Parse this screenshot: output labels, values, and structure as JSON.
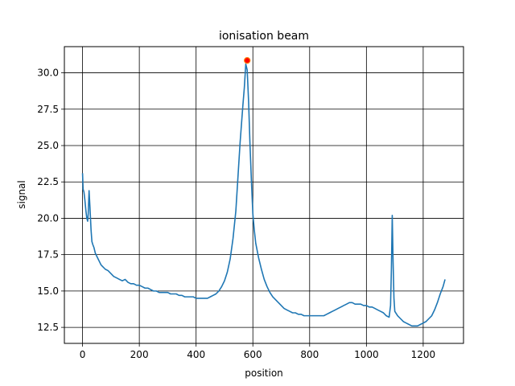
{
  "chart_data": {
    "type": "line",
    "title": "ionisation beam",
    "xlabel": "position",
    "ylabel": "signal",
    "xlim": [
      -64,
      1342
    ],
    "ylim": [
      11.4,
      31.8
    ],
    "xticks": [
      0,
      200,
      400,
      600,
      800,
      1000,
      1200
    ],
    "yticks": [
      12.5,
      15.0,
      17.5,
      20.0,
      22.5,
      25.0,
      27.5,
      30.0
    ],
    "xtick_labels": [
      "0",
      "200",
      "400",
      "600",
      "800",
      "1000",
      "1200"
    ],
    "ytick_labels": [
      "12.5",
      "15.0",
      "17.5",
      "20.0",
      "22.5",
      "25.0",
      "27.5",
      "30.0"
    ],
    "grid": true,
    "line_color": "#1f77b4",
    "series": [
      {
        "values": [
          [
            0,
            23.1
          ],
          [
            2,
            22.0
          ],
          [
            5,
            21.8
          ],
          [
            8,
            21.3
          ],
          [
            12,
            20.5
          ],
          [
            15,
            20.0
          ],
          [
            18,
            19.8
          ],
          [
            20,
            20.3
          ],
          [
            23,
            21.9
          ],
          [
            26,
            20.8
          ],
          [
            30,
            19.2
          ],
          [
            33,
            18.4
          ],
          [
            36,
            18.2
          ],
          [
            40,
            18.0
          ],
          [
            45,
            17.6
          ],
          [
            50,
            17.4
          ],
          [
            55,
            17.2
          ],
          [
            60,
            17.0
          ],
          [
            65,
            16.8
          ],
          [
            70,
            16.7
          ],
          [
            80,
            16.5
          ],
          [
            90,
            16.4
          ],
          [
            100,
            16.2
          ],
          [
            110,
            16.0
          ],
          [
            120,
            15.9
          ],
          [
            130,
            15.8
          ],
          [
            140,
            15.7
          ],
          [
            150,
            15.8
          ],
          [
            160,
            15.6
          ],
          [
            170,
            15.5
          ],
          [
            180,
            15.5
          ],
          [
            190,
            15.4
          ],
          [
            200,
            15.4
          ],
          [
            210,
            15.3
          ],
          [
            220,
            15.2
          ],
          [
            230,
            15.2
          ],
          [
            240,
            15.1
          ],
          [
            250,
            15.0
          ],
          [
            260,
            15.0
          ],
          [
            270,
            14.9
          ],
          [
            280,
            14.9
          ],
          [
            290,
            14.9
          ],
          [
            300,
            14.9
          ],
          [
            310,
            14.8
          ],
          [
            320,
            14.8
          ],
          [
            330,
            14.8
          ],
          [
            340,
            14.7
          ],
          [
            350,
            14.7
          ],
          [
            360,
            14.6
          ],
          [
            370,
            14.6
          ],
          [
            380,
            14.6
          ],
          [
            390,
            14.6
          ],
          [
            400,
            14.5
          ],
          [
            410,
            14.5
          ],
          [
            420,
            14.5
          ],
          [
            430,
            14.5
          ],
          [
            440,
            14.5
          ],
          [
            450,
            14.6
          ],
          [
            460,
            14.7
          ],
          [
            470,
            14.8
          ],
          [
            480,
            15.0
          ],
          [
            490,
            15.3
          ],
          [
            500,
            15.7
          ],
          [
            510,
            16.3
          ],
          [
            520,
            17.2
          ],
          [
            530,
            18.6
          ],
          [
            540,
            20.5
          ],
          [
            548,
            23.0
          ],
          [
            555,
            25.2
          ],
          [
            560,
            26.5
          ],
          [
            565,
            27.8
          ],
          [
            570,
            29.0
          ],
          [
            575,
            30.6
          ],
          [
            580,
            30.2
          ],
          [
            585,
            28.0
          ],
          [
            590,
            25.0
          ],
          [
            595,
            22.5
          ],
          [
            600,
            20.3
          ],
          [
            605,
            19.2
          ],
          [
            610,
            18.3
          ],
          [
            620,
            17.3
          ],
          [
            630,
            16.5
          ],
          [
            640,
            15.8
          ],
          [
            650,
            15.3
          ],
          [
            660,
            14.9
          ],
          [
            670,
            14.6
          ],
          [
            680,
            14.4
          ],
          [
            690,
            14.2
          ],
          [
            700,
            14.0
          ],
          [
            710,
            13.8
          ],
          [
            720,
            13.7
          ],
          [
            730,
            13.6
          ],
          [
            740,
            13.5
          ],
          [
            750,
            13.5
          ],
          [
            760,
            13.4
          ],
          [
            770,
            13.4
          ],
          [
            780,
            13.3
          ],
          [
            790,
            13.3
          ],
          [
            800,
            13.3
          ],
          [
            810,
            13.3
          ],
          [
            820,
            13.3
          ],
          [
            830,
            13.3
          ],
          [
            840,
            13.3
          ],
          [
            850,
            13.3
          ],
          [
            860,
            13.4
          ],
          [
            870,
            13.5
          ],
          [
            880,
            13.6
          ],
          [
            890,
            13.7
          ],
          [
            900,
            13.8
          ],
          [
            910,
            13.9
          ],
          [
            920,
            14.0
          ],
          [
            930,
            14.1
          ],
          [
            940,
            14.2
          ],
          [
            950,
            14.2
          ],
          [
            960,
            14.1
          ],
          [
            970,
            14.1
          ],
          [
            980,
            14.1
          ],
          [
            990,
            14.0
          ],
          [
            1000,
            14.0
          ],
          [
            1010,
            13.9
          ],
          [
            1020,
            13.9
          ],
          [
            1030,
            13.8
          ],
          [
            1040,
            13.7
          ],
          [
            1050,
            13.6
          ],
          [
            1060,
            13.5
          ],
          [
            1070,
            13.3
          ],
          [
            1080,
            13.2
          ],
          [
            1085,
            14.0
          ],
          [
            1088,
            16.5
          ],
          [
            1091,
            20.2
          ],
          [
            1094,
            17.0
          ],
          [
            1097,
            14.5
          ],
          [
            1100,
            13.6
          ],
          [
            1110,
            13.3
          ],
          [
            1120,
            13.1
          ],
          [
            1130,
            12.9
          ],
          [
            1140,
            12.8
          ],
          [
            1150,
            12.7
          ],
          [
            1160,
            12.6
          ],
          [
            1170,
            12.6
          ],
          [
            1180,
            12.6
          ],
          [
            1190,
            12.7
          ],
          [
            1200,
            12.8
          ],
          [
            1210,
            12.9
          ],
          [
            1220,
            13.1
          ],
          [
            1230,
            13.3
          ],
          [
            1240,
            13.7
          ],
          [
            1250,
            14.2
          ],
          [
            1260,
            14.8
          ],
          [
            1270,
            15.3
          ],
          [
            1277,
            15.8
          ]
        ]
      }
    ],
    "marker": {
      "x": 580,
      "y": 30.85,
      "color": "#ff0000",
      "edge_color": "#ff7f0e"
    }
  }
}
